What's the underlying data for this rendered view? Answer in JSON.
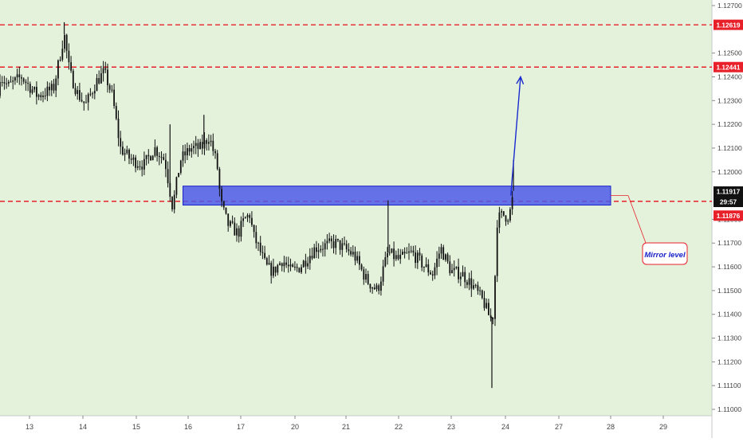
{
  "colors": {
    "background": "#e4f2dc",
    "axis_background": "#ffffff",
    "candle": "#111111",
    "level_line": "#e8202a",
    "zone_fill": "#4f5ae8",
    "zone_stroke": "#1a23c8",
    "arrow": "#1a2ad0",
    "annotation": "#e8202a",
    "annotation_text": "#1a23c8",
    "price_tag_current": "#111111",
    "price_tag_level": "#e8202a"
  },
  "chart_data": {
    "type": "candlestick",
    "title": "",
    "xlabel": "",
    "ylabel": "",
    "ylim": [
      1.11,
      1.1272
    ],
    "grid": false,
    "price_axis_ticks": [
      "1.12700",
      "1.12500",
      "1.12400",
      "1.12300",
      "1.12200",
      "1.12100",
      "1.12000",
      "1.11800",
      "1.11700",
      "1.11600",
      "1.11500",
      "1.11400",
      "1.11300",
      "1.11200",
      "1.11100",
      "1.11000"
    ],
    "time_axis_ticks": [
      "13",
      "14",
      "15",
      "16",
      "17",
      "20",
      "21",
      "22",
      "23",
      "24",
      "27",
      "28",
      "29"
    ],
    "horizontal_levels": [
      {
        "price": 1.12619,
        "label": "1.12619"
      },
      {
        "price": 1.12441,
        "label": "1.12441"
      },
      {
        "price": 1.11876,
        "label": "1.11876"
      }
    ],
    "current_price": {
      "price": 1.11917,
      "label": "1.11917",
      "countdown": "29:57"
    },
    "zone": {
      "from_day": "15.9",
      "to_day": "28.0",
      "price_low": 1.1186,
      "price_high": 1.1194
    },
    "annotation": {
      "text": "Mirror level"
    },
    "projection_arrow": {
      "from_day": 24.3,
      "from_price": 1.119,
      "to_day": 24.85,
      "to_price": 1.124
    },
    "candle_anchors": [
      [
        12.0,
        1.1232
      ],
      [
        12.3,
        1.1245
      ],
      [
        12.6,
        1.1236
      ],
      [
        12.85,
        1.124
      ],
      [
        13.15,
        1.1232
      ],
      [
        13.45,
        1.1235
      ],
      [
        13.65,
        1.1258
      ],
      [
        13.75,
        1.1242
      ],
      [
        13.9,
        1.1233
      ],
      [
        14.05,
        1.1228
      ],
      [
        14.25,
        1.1238
      ],
      [
        14.4,
        1.1242
      ],
      [
        14.55,
        1.1232
      ],
      [
        14.7,
        1.121
      ],
      [
        14.9,
        1.1205
      ],
      [
        15.15,
        1.1203
      ],
      [
        15.35,
        1.121
      ],
      [
        15.55,
        1.1205
      ],
      [
        15.7,
        1.1185
      ],
      [
        15.85,
        1.1205
      ],
      [
        16.05,
        1.121
      ],
      [
        16.25,
        1.121
      ],
      [
        16.4,
        1.1215
      ],
      [
        16.55,
        1.1203
      ],
      [
        16.62,
        1.1187
      ],
      [
        16.75,
        1.1178
      ],
      [
        16.95,
        1.1174
      ],
      [
        17.2,
        1.118
      ],
      [
        17.5,
        1.1182
      ],
      [
        17.7,
        1.1173
      ],
      [
        18.0,
        1.1168
      ],
      [
        18.4,
        1.116
      ],
      [
        18.8,
        1.1158
      ],
      [
        19.3,
        1.1163
      ],
      [
        19.8,
        1.1158
      ],
      [
        20.1,
        1.116
      ],
      [
        20.4,
        1.1168
      ],
      [
        20.8,
        1.117
      ],
      [
        21.15,
        1.1165
      ],
      [
        21.4,
        1.1154
      ],
      [
        21.6,
        1.115
      ],
      [
        21.72,
        1.116
      ],
      [
        21.8,
        1.1166
      ],
      [
        22.0,
        1.1163
      ],
      [
        22.25,
        1.1166
      ],
      [
        22.5,
        1.116
      ],
      [
        22.65,
        1.1157
      ],
      [
        22.8,
        1.1168
      ],
      [
        23.0,
        1.1158
      ],
      [
        23.2,
        1.1157
      ],
      [
        23.4,
        1.1152
      ],
      [
        23.6,
        1.1145
      ],
      [
        23.72,
        1.1138
      ],
      [
        23.78,
        1.114
      ],
      [
        23.85,
        1.118
      ],
      [
        23.95,
        1.1182
      ],
      [
        24.1,
        1.1181
      ],
      [
        24.25,
        1.1183
      ],
      [
        24.35,
        1.1186
      ],
      [
        24.45,
        1.1192
      ]
    ],
    "spikes": [
      {
        "day": 13.65,
        "price": 1.1263
      },
      {
        "day": 16.3,
        "price": 1.1224
      },
      {
        "day": 15.65,
        "price": 1.122
      },
      {
        "day": 21.8,
        "price": 1.1188
      },
      {
        "day": 23.75,
        "price": 1.1109
      },
      {
        "day": 24.45,
        "price": 1.1205
      }
    ]
  }
}
